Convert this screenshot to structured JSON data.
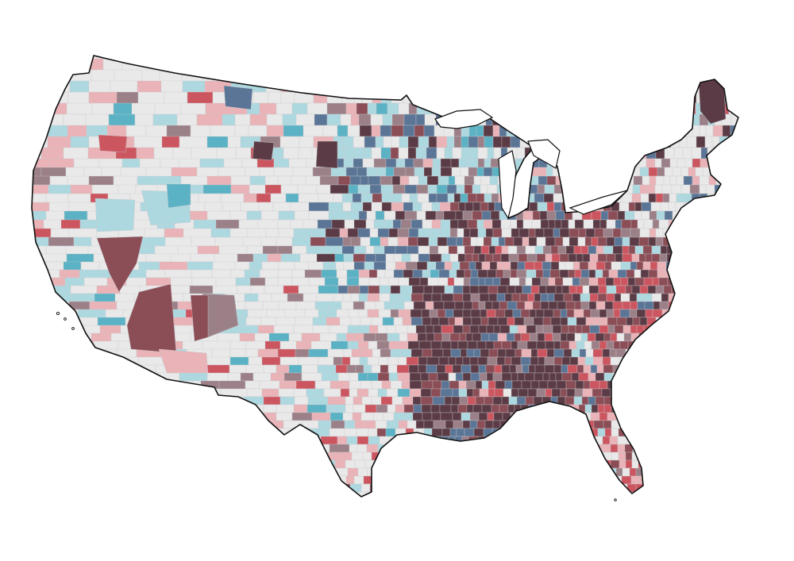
{
  "map": {
    "type": "county-choropleth",
    "region": "contiguous-united-states",
    "legend": "none",
    "title": "",
    "palette": {
      "none": "#e9e9ea",
      "light_blue": "#aed8e0",
      "teal": "#5bb2c4",
      "slate_blue": "#5b7596",
      "mauve": "#9b8088",
      "light_pink": "#e9b3b7",
      "red": "#cc5660",
      "dark_red": "#8b4d56",
      "plum": "#5b3c46"
    },
    "county_lines": "#c9c9cc",
    "outline": "#111111"
  }
}
